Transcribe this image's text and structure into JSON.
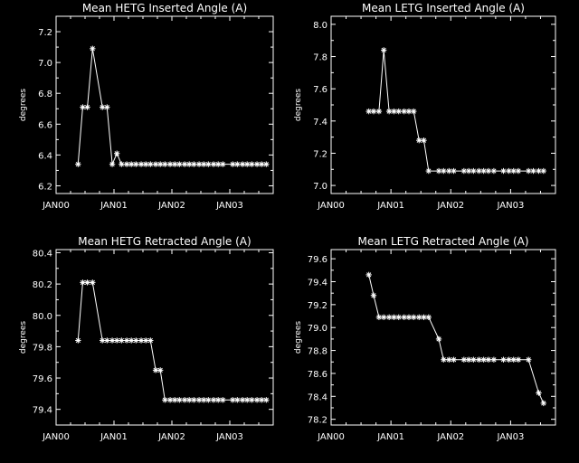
{
  "chart_data": [
    {
      "type": "line",
      "title": "Mean HETG Inserted Angle (A)",
      "ylabel": "degrees",
      "xlabel": "",
      "xtick_labels": [
        "JAN00",
        "JAN01",
        "JAN02",
        "JAN03"
      ],
      "yticks": [
        "6.2",
        "6.4",
        "6.6",
        "6.8",
        "7.0",
        "7.2"
      ],
      "ylim": [
        6.15,
        7.3
      ],
      "marker": "asterisk",
      "points": [
        [
          0.38,
          6.34
        ],
        [
          0.46,
          6.71
        ],
        [
          0.54,
          6.71
        ],
        [
          0.63,
          7.09
        ],
        [
          0.8,
          6.71
        ],
        [
          0.88,
          6.71
        ],
        [
          0.97,
          6.34
        ],
        [
          1.05,
          6.41
        ],
        [
          1.13,
          6.34
        ],
        [
          1.22,
          6.34
        ],
        [
          1.3,
          6.34
        ],
        [
          1.38,
          6.34
        ],
        [
          1.47,
          6.34
        ],
        [
          1.55,
          6.34
        ],
        [
          1.63,
          6.34
        ],
        [
          1.72,
          6.34
        ],
        [
          1.8,
          6.34
        ],
        [
          1.88,
          6.34
        ],
        [
          1.97,
          6.34
        ],
        [
          2.05,
          6.34
        ],
        [
          2.13,
          6.34
        ],
        [
          2.22,
          6.34
        ],
        [
          2.3,
          6.34
        ],
        [
          2.38,
          6.34
        ],
        [
          2.47,
          6.34
        ],
        [
          2.55,
          6.34
        ],
        [
          2.63,
          6.34
        ],
        [
          2.72,
          6.34
        ],
        [
          2.8,
          6.34
        ],
        [
          2.88,
          6.34
        ],
        [
          3.05,
          6.34
        ],
        [
          3.13,
          6.34
        ],
        [
          3.22,
          6.34
        ],
        [
          3.3,
          6.34
        ],
        [
          3.38,
          6.34
        ],
        [
          3.47,
          6.34
        ],
        [
          3.55,
          6.34
        ],
        [
          3.63,
          6.34
        ]
      ]
    },
    {
      "type": "line",
      "title": "Mean LETG Inserted Angle (A)",
      "ylabel": "degrees",
      "xlabel": "",
      "xtick_labels": [
        "JAN00",
        "JAN01",
        "JAN02",
        "JAN03"
      ],
      "yticks": [
        "7.0",
        "7.2",
        "7.4",
        "7.6",
        "7.8",
        "8.0"
      ],
      "ylim": [
        6.95,
        8.05
      ],
      "marker": "asterisk",
      "points": [
        [
          0.63,
          7.46
        ],
        [
          0.71,
          7.46
        ],
        [
          0.8,
          7.46
        ],
        [
          0.88,
          7.84
        ],
        [
          0.97,
          7.46
        ],
        [
          1.05,
          7.46
        ],
        [
          1.13,
          7.46
        ],
        [
          1.22,
          7.46
        ],
        [
          1.3,
          7.46
        ],
        [
          1.38,
          7.46
        ],
        [
          1.47,
          7.28
        ],
        [
          1.55,
          7.28
        ],
        [
          1.63,
          7.09
        ],
        [
          1.8,
          7.09
        ],
        [
          1.88,
          7.09
        ],
        [
          1.97,
          7.09
        ],
        [
          2.05,
          7.09
        ],
        [
          2.22,
          7.09
        ],
        [
          2.3,
          7.09
        ],
        [
          2.38,
          7.09
        ],
        [
          2.47,
          7.09
        ],
        [
          2.55,
          7.09
        ],
        [
          2.63,
          7.09
        ],
        [
          2.72,
          7.09
        ],
        [
          2.88,
          7.09
        ],
        [
          2.97,
          7.09
        ],
        [
          3.05,
          7.09
        ],
        [
          3.13,
          7.09
        ],
        [
          3.3,
          7.09
        ],
        [
          3.38,
          7.09
        ],
        [
          3.47,
          7.09
        ],
        [
          3.55,
          7.09
        ]
      ]
    },
    {
      "type": "line",
      "title": "Mean HETG Retracted Angle (A)",
      "ylabel": "degrees",
      "xlabel": "",
      "xtick_labels": [
        "JAN00",
        "JAN01",
        "JAN02",
        "JAN03"
      ],
      "yticks": [
        "79.4",
        "79.6",
        "79.8",
        "80.0",
        "80.2",
        "80.4"
      ],
      "ylim": [
        79.3,
        80.42
      ],
      "marker": "asterisk",
      "points": [
        [
          0.38,
          79.84
        ],
        [
          0.46,
          80.21
        ],
        [
          0.54,
          80.21
        ],
        [
          0.63,
          80.21
        ],
        [
          0.8,
          79.84
        ],
        [
          0.88,
          79.84
        ],
        [
          0.97,
          79.84
        ],
        [
          1.05,
          79.84
        ],
        [
          1.13,
          79.84
        ],
        [
          1.22,
          79.84
        ],
        [
          1.3,
          79.84
        ],
        [
          1.38,
          79.84
        ],
        [
          1.47,
          79.84
        ],
        [
          1.55,
          79.84
        ],
        [
          1.63,
          79.84
        ],
        [
          1.72,
          79.65
        ],
        [
          1.8,
          79.65
        ],
        [
          1.88,
          79.46
        ],
        [
          1.97,
          79.46
        ],
        [
          2.05,
          79.46
        ],
        [
          2.13,
          79.46
        ],
        [
          2.22,
          79.46
        ],
        [
          2.3,
          79.46
        ],
        [
          2.38,
          79.46
        ],
        [
          2.47,
          79.46
        ],
        [
          2.55,
          79.46
        ],
        [
          2.63,
          79.46
        ],
        [
          2.72,
          79.46
        ],
        [
          2.8,
          79.46
        ],
        [
          2.88,
          79.46
        ],
        [
          3.05,
          79.46
        ],
        [
          3.13,
          79.46
        ],
        [
          3.22,
          79.46
        ],
        [
          3.3,
          79.46
        ],
        [
          3.38,
          79.46
        ],
        [
          3.47,
          79.46
        ],
        [
          3.55,
          79.46
        ],
        [
          3.63,
          79.46
        ]
      ]
    },
    {
      "type": "line",
      "title": "Mean LETG Retracted Angle (A)",
      "ylabel": "degrees",
      "xlabel": "",
      "xtick_labels": [
        "JAN00",
        "JAN01",
        "JAN02",
        "JAN03"
      ],
      "yticks": [
        "78.2",
        "78.4",
        "78.6",
        "78.8",
        "79.0",
        "79.2",
        "79.4",
        "79.6"
      ],
      "ylim": [
        78.15,
        79.68
      ],
      "marker": "asterisk",
      "points": [
        [
          0.63,
          79.46
        ],
        [
          0.71,
          79.28
        ],
        [
          0.8,
          79.09
        ],
        [
          0.88,
          79.09
        ],
        [
          0.97,
          79.09
        ],
        [
          1.05,
          79.09
        ],
        [
          1.13,
          79.09
        ],
        [
          1.22,
          79.09
        ],
        [
          1.3,
          79.09
        ],
        [
          1.38,
          79.09
        ],
        [
          1.47,
          79.09
        ],
        [
          1.55,
          79.09
        ],
        [
          1.63,
          79.09
        ],
        [
          1.8,
          78.9
        ],
        [
          1.88,
          78.72
        ],
        [
          1.97,
          78.72
        ],
        [
          2.05,
          78.72
        ],
        [
          2.22,
          78.72
        ],
        [
          2.3,
          78.72
        ],
        [
          2.38,
          78.72
        ],
        [
          2.47,
          78.72
        ],
        [
          2.55,
          78.72
        ],
        [
          2.63,
          78.72
        ],
        [
          2.72,
          78.72
        ],
        [
          2.88,
          78.72
        ],
        [
          2.97,
          78.72
        ],
        [
          3.05,
          78.72
        ],
        [
          3.13,
          78.72
        ],
        [
          3.3,
          78.72
        ],
        [
          3.47,
          78.43
        ],
        [
          3.55,
          78.34
        ]
      ]
    }
  ]
}
